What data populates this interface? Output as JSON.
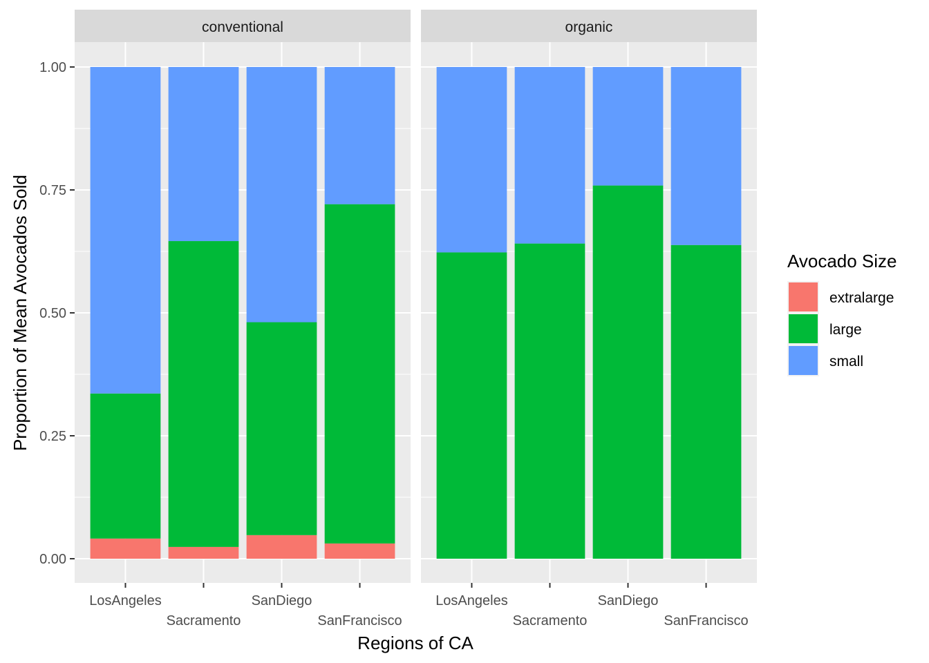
{
  "chart_data": {
    "type": "bar",
    "stacked": true,
    "xlabel": "Regions of CA",
    "ylabel": "Proportion of Mean Avocados Sold",
    "ylim": [
      0,
      1
    ],
    "yticks": [
      "0.00",
      "0.25",
      "0.50",
      "0.75",
      "1.00"
    ],
    "ytick_values": [
      0,
      0.25,
      0.5,
      0.75,
      1.0
    ],
    "categories": [
      "LosAngeles",
      "Sacramento",
      "SanDiego",
      "SanFrancisco"
    ],
    "legend": {
      "title": "Avocado Size",
      "position": "right",
      "entries": [
        "extralarge",
        "large",
        "small"
      ]
    },
    "colors": {
      "extralarge": "#F8766D",
      "large": "#00BA38",
      "small": "#619CFF",
      "panel_bg": "#EBEBEB",
      "strip_bg": "#D9D9D9",
      "grid": "#FFFFFF"
    },
    "facets": [
      {
        "name": "conventional",
        "series": [
          {
            "name": "extralarge",
            "values": [
              0.041,
              0.024,
              0.048,
              0.031
            ]
          },
          {
            "name": "large",
            "values": [
              0.295,
              0.622,
              0.433,
              0.69
            ]
          },
          {
            "name": "small",
            "values": [
              0.664,
              0.354,
              0.519,
              0.279
            ]
          }
        ]
      },
      {
        "name": "organic",
        "series": [
          {
            "name": "extralarge",
            "values": [
              0.0,
              0.0,
              0.0,
              0.0
            ]
          },
          {
            "name": "large",
            "values": [
              0.623,
              0.641,
              0.759,
              0.638
            ]
          },
          {
            "name": "small",
            "values": [
              0.377,
              0.359,
              0.241,
              0.362
            ]
          }
        ]
      }
    ]
  }
}
